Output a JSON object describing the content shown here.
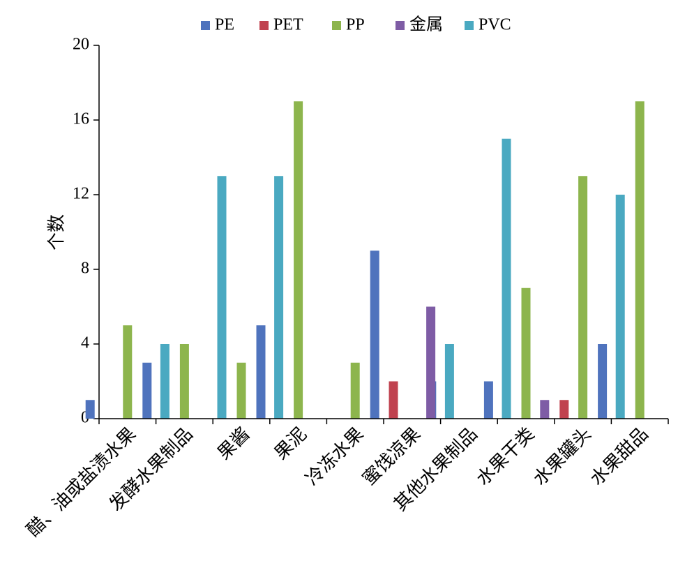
{
  "chart_data": {
    "type": "bar",
    "ylabel": "个数",
    "xlabel": "",
    "ylim": [
      0,
      20
    ],
    "yticks": [
      "0",
      "4",
      "8",
      "12",
      "16",
      "20"
    ],
    "legend_position": "top",
    "categories": [
      "醋、油或盐渍水果",
      "发酵水果制品",
      "果酱",
      "果泥",
      "冷冻水果",
      "蜜饯凉果",
      "其他水果制品",
      "水果干类",
      "水果罐头",
      "水果甜品"
    ],
    "series": [
      {
        "name": "PE",
        "color": "#4F73BD",
        "values": [
          1,
          3,
          0,
          5,
          0,
          9,
          2,
          2,
          0,
          4
        ]
      },
      {
        "name": "PET",
        "color": "#C0424F",
        "values": [
          0,
          0,
          0,
          0,
          0,
          2,
          0,
          0,
          1,
          0
        ]
      },
      {
        "name": "PP",
        "color": "#8DB54D",
        "values": [
          5,
          4,
          3,
          17,
          3,
          0,
          0,
          7,
          13,
          17
        ]
      },
      {
        "name": "金属",
        "color": "#7E5CA5",
        "values": [
          0,
          0,
          0,
          0,
          0,
          6,
          0,
          1,
          0,
          0
        ]
      },
      {
        "name": "PVC",
        "color": "#4AA9C1",
        "values": [
          4,
          13,
          13,
          0,
          0,
          4,
          15,
          0,
          12,
          0
        ]
      }
    ]
  }
}
